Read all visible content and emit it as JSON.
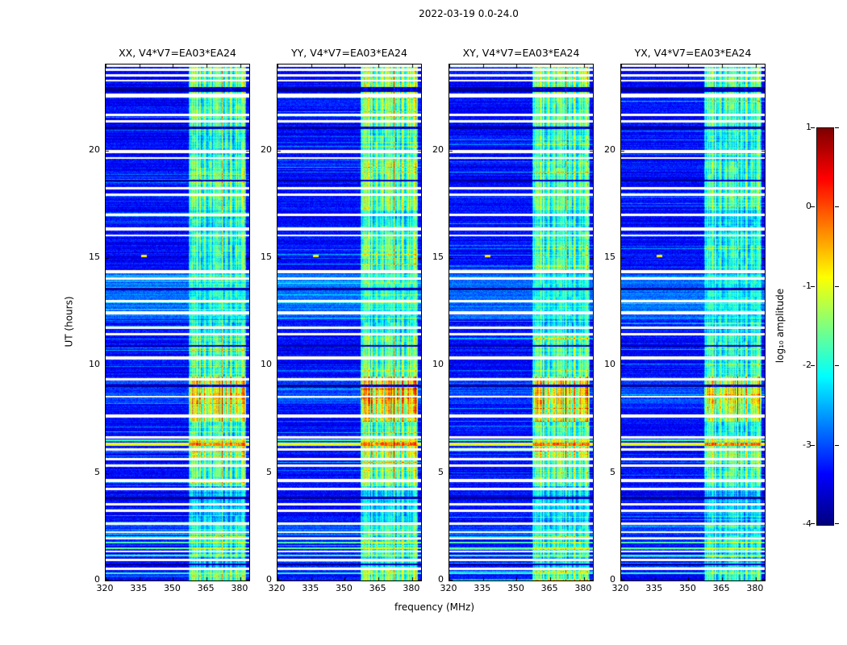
{
  "figure": {
    "title": "2022-03-19 0.0-24.0",
    "xlabel": "frequency (MHz)",
    "ylabel": "UT (hours)"
  },
  "colors": {
    "background": "#ffffff",
    "axis": "#000000",
    "colormap": "jet"
  },
  "chart_data": {
    "type": "heatmap",
    "title": "2022-03-19 0.0-24.0",
    "date": "2022-03-19",
    "time_range_hours": [
      0.0,
      24.0
    ],
    "panels": [
      {
        "pol": "XX",
        "title": "XX, V4*V7=EA03*EA24"
      },
      {
        "pol": "YY",
        "title": "YY, V4*V7=EA03*EA24"
      },
      {
        "pol": "XY",
        "title": "XY, V4*V7=EA03*EA24"
      },
      {
        "pol": "YX",
        "title": "YX, V4*V7=EA03*EA24"
      }
    ],
    "x": {
      "label": "frequency (MHz)",
      "lim": [
        320,
        384
      ],
      "ticks": [
        320,
        335,
        350,
        365,
        380
      ]
    },
    "y": {
      "label": "UT (hours)",
      "lim": [
        0,
        24
      ],
      "ticks": [
        0,
        5,
        10,
        15,
        20
      ]
    },
    "colorbar": {
      "label": "log₁₀ amplitude",
      "lim": [
        -4,
        1
      ],
      "ticks": [
        1,
        0,
        -1,
        -2,
        -3,
        -4
      ],
      "colormap": "jet"
    },
    "features": {
      "background_level": -3.35,
      "rfi_band_mhz": [
        357,
        382.5
      ],
      "band_envelope": [
        [
          0,
          0.6,
          0.95
        ],
        [
          0.6,
          1.1,
          0.55
        ],
        [
          1.1,
          2.1,
          0.8
        ],
        [
          2.1,
          4.4,
          0.6
        ],
        [
          4.4,
          5.6,
          1.0
        ],
        [
          5.6,
          6.6,
          1.2
        ],
        [
          6.6,
          7.4,
          0.9
        ],
        [
          7.4,
          9.5,
          1.35
        ],
        [
          9.5,
          11.5,
          0.95
        ],
        [
          11.5,
          12.1,
          0.7
        ],
        [
          12.1,
          14.3,
          0.5
        ],
        [
          14.3,
          16.2,
          0.9
        ],
        [
          16.2,
          17.2,
          0.75
        ],
        [
          17.2,
          19.5,
          1.0
        ],
        [
          19.5,
          21.0,
          0.85
        ],
        [
          21.0,
          22.5,
          1.0
        ],
        [
          22.5,
          24.0,
          1.1
        ]
      ],
      "white_gaps_ut": [
        [
          23.95,
          0.1
        ],
        [
          23.75,
          0.12
        ],
        [
          23.5,
          0.1
        ],
        [
          23.25,
          0.1
        ],
        [
          22.55,
          0.18
        ],
        [
          21.65,
          0.12
        ],
        [
          21.35,
          0.1
        ],
        [
          19.95,
          0.14
        ],
        [
          19.65,
          0.1
        ],
        [
          18.25,
          0.1
        ],
        [
          17.95,
          0.1
        ],
        [
          17.0,
          0.1
        ],
        [
          16.35,
          0.12
        ],
        [
          16.05,
          0.1
        ],
        [
          14.35,
          0.14
        ],
        [
          14.05,
          0.1
        ],
        [
          13.0,
          0.1
        ],
        [
          12.45,
          0.12
        ],
        [
          11.75,
          0.1
        ],
        [
          11.45,
          0.1
        ],
        [
          10.35,
          0.12
        ],
        [
          9.35,
          0.1
        ],
        [
          8.55,
          0.1
        ],
        [
          7.65,
          0.12
        ],
        [
          6.65,
          0.1
        ],
        [
          6.1,
          0.12
        ],
        [
          5.65,
          0.1
        ],
        [
          5.35,
          0.1
        ],
        [
          4.65,
          0.12
        ],
        [
          4.25,
          0.1
        ],
        [
          3.55,
          0.1
        ],
        [
          3.25,
          0.1
        ],
        [
          2.65,
          0.1
        ],
        [
          2.25,
          0.1
        ],
        [
          1.95,
          0.1
        ],
        [
          1.35,
          0.1
        ],
        [
          0.95,
          0.12
        ],
        [
          0.55,
          0.1
        ]
      ],
      "bright_rows_ut": [
        [
          6.35,
          0.14,
          -1.0
        ],
        [
          6.52,
          0.08,
          -1.8
        ],
        [
          2.0,
          0.07,
          -1.9
        ],
        [
          1.75,
          0.08,
          -1.7
        ],
        [
          1.5,
          0.08,
          -1.6
        ],
        [
          1.15,
          0.08,
          -1.8
        ],
        [
          0.35,
          0.07,
          -1.9
        ]
      ],
      "dark_rows_ut": [
        [
          22.85,
          0.22
        ],
        [
          21.05,
          0.1
        ],
        [
          18.6,
          0.08
        ],
        [
          13.55,
          0.1
        ],
        [
          10.9,
          0.08
        ],
        [
          9.05,
          0.12
        ],
        [
          3.85,
          0.1
        ],
        [
          0.75,
          0.08
        ]
      ],
      "light_regions_ut": [
        [
          12.15,
          14.25,
          0.5
        ],
        [
          8.2,
          9.45,
          0.3
        ],
        [
          2.1,
          2.6,
          0.3
        ]
      ],
      "point_source": {
        "ut": 15.1,
        "mhz": 337
      },
      "panel_gain": [
        1.0,
        1.12,
        1.05,
        0.95
      ]
    }
  }
}
